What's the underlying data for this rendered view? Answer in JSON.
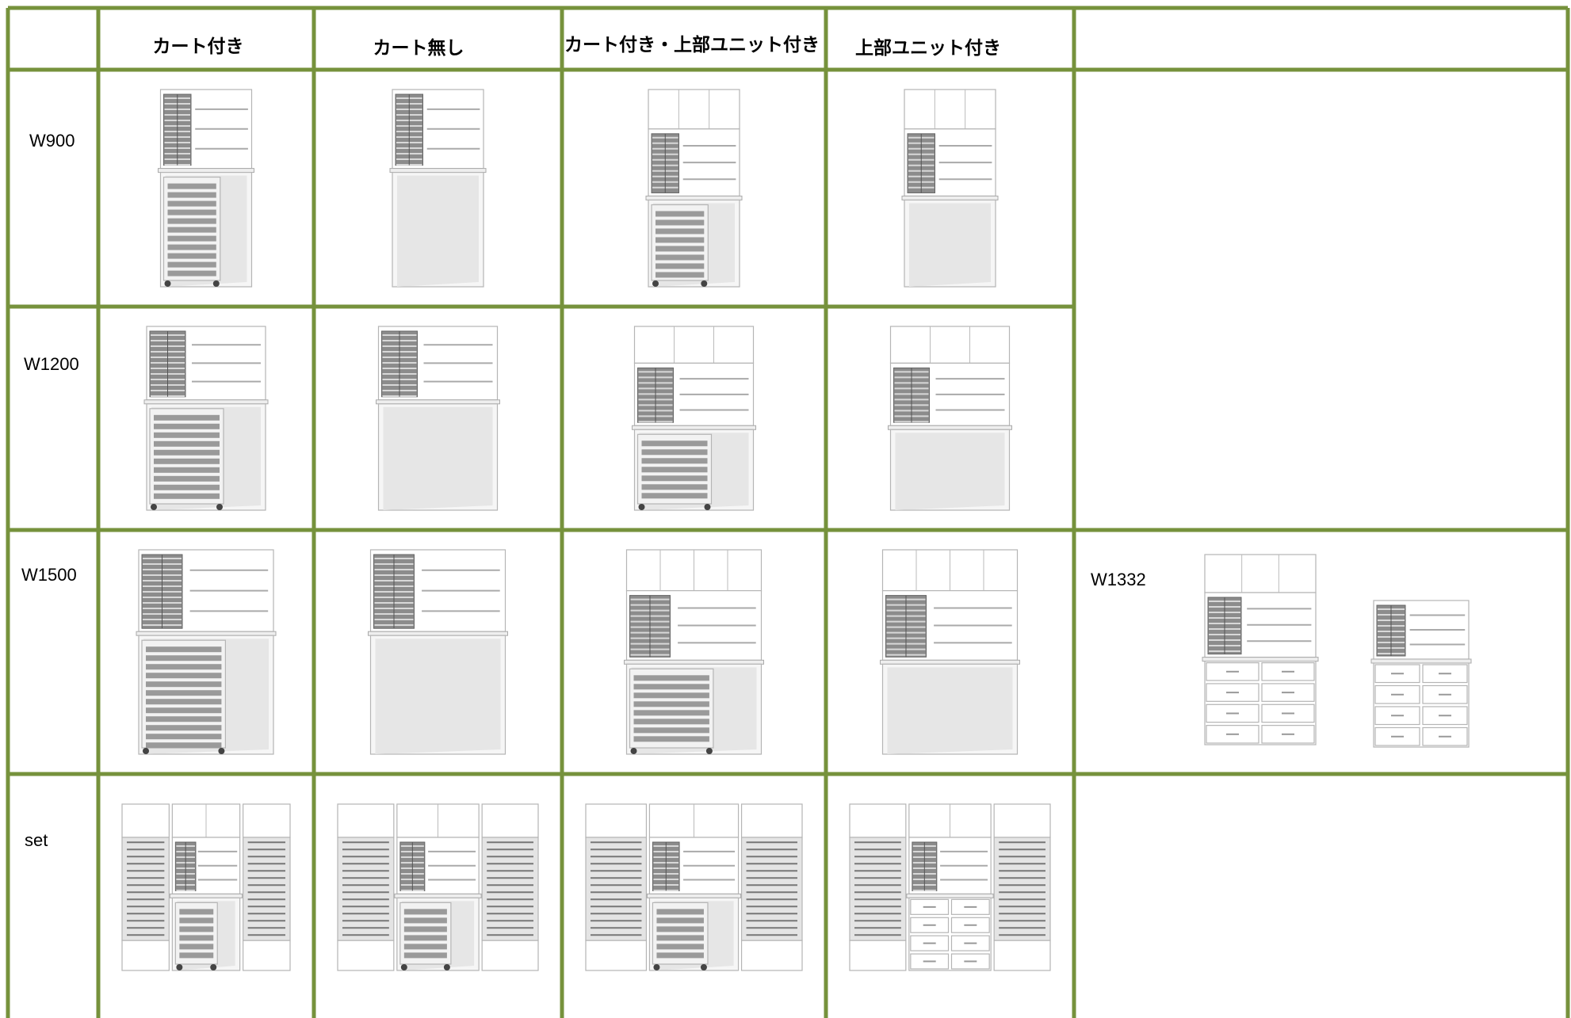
{
  "header": {
    "columns": [
      "カート付き",
      "カート無し",
      "カート付き・上部ユニット付き",
      "上部ユニット付き"
    ]
  },
  "rows": [
    "W900",
    "W1200",
    "W1500",
    "set"
  ],
  "extra": {
    "label": "W1332"
  }
}
